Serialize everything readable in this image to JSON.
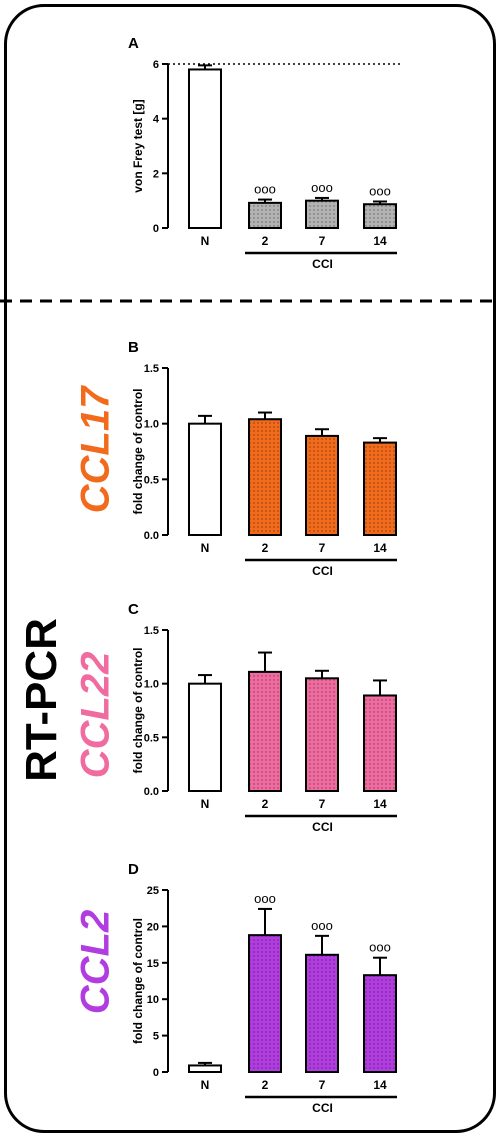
{
  "method_label": "RT-PCR",
  "chart_data": [
    {
      "type": "bar",
      "panel_letter": "A",
      "categories": [
        "N",
        "2",
        "7",
        "14"
      ],
      "values": [
        5.8,
        0.92,
        1.0,
        0.87
      ],
      "errors": [
        0.15,
        0.12,
        0.1,
        0.1
      ],
      "significance": [
        "",
        "ooo",
        "ooo",
        "ooo"
      ],
      "ylabel": "von Frey test [g]",
      "ylim": [
        0,
        6
      ],
      "yticks": [
        "0",
        "2",
        "4",
        "6"
      ],
      "group_label": "CCI",
      "reference_line": 6,
      "colors": [
        "#ffffff",
        "#b3b3b3",
        "#b3b3b3",
        "#b3b3b3"
      ],
      "side_label": "",
      "side_color": "#000000"
    },
    {
      "type": "bar",
      "panel_letter": "B",
      "categories": [
        "N",
        "2",
        "7",
        "14"
      ],
      "values": [
        1.0,
        1.04,
        0.89,
        0.83
      ],
      "errors": [
        0.07,
        0.06,
        0.06,
        0.04
      ],
      "significance": [
        "",
        "",
        "",
        ""
      ],
      "ylabel": "fold change of control",
      "ylim": [
        0,
        1.5
      ],
      "yticks": [
        "0.0",
        "0.5",
        "1.0",
        "1.5"
      ],
      "group_label": "CCI",
      "colors": [
        "#ffffff",
        "#f26a1b",
        "#f26a1b",
        "#f26a1b"
      ],
      "side_label": "CCL17",
      "side_color": "#f26a1b"
    },
    {
      "type": "bar",
      "panel_letter": "C",
      "categories": [
        "N",
        "2",
        "7",
        "14"
      ],
      "values": [
        1.0,
        1.11,
        1.05,
        0.89
      ],
      "errors": [
        0.08,
        0.18,
        0.07,
        0.14
      ],
      "significance": [
        "",
        "",
        "",
        ""
      ],
      "ylabel": "fold change of control",
      "ylim": [
        0,
        1.5
      ],
      "yticks": [
        "0.0",
        "0.5",
        "1.0",
        "1.5"
      ],
      "group_label": "CCI",
      "colors": [
        "#ffffff",
        "#f06ba0",
        "#f06ba0",
        "#f06ba0"
      ],
      "side_label": "CCL22",
      "side_color": "#f06ba0"
    },
    {
      "type": "bar",
      "panel_letter": "D",
      "categories": [
        "N",
        "2",
        "7",
        "14"
      ],
      "values": [
        0.9,
        18.8,
        16.1,
        13.3
      ],
      "errors": [
        0.35,
        3.6,
        2.6,
        2.4
      ],
      "significance": [
        "",
        "ooo",
        "ooo",
        "ooo"
      ],
      "ylabel": "fold change of control",
      "ylim": [
        0,
        25
      ],
      "yticks": [
        "0",
        "5",
        "10",
        "15",
        "20",
        "25"
      ],
      "group_label": "CCI",
      "colors": [
        "#ffffff",
        "#b13de0",
        "#b13de0",
        "#b13de0"
      ],
      "side_label": "CCL2",
      "side_color": "#b13de0"
    }
  ]
}
